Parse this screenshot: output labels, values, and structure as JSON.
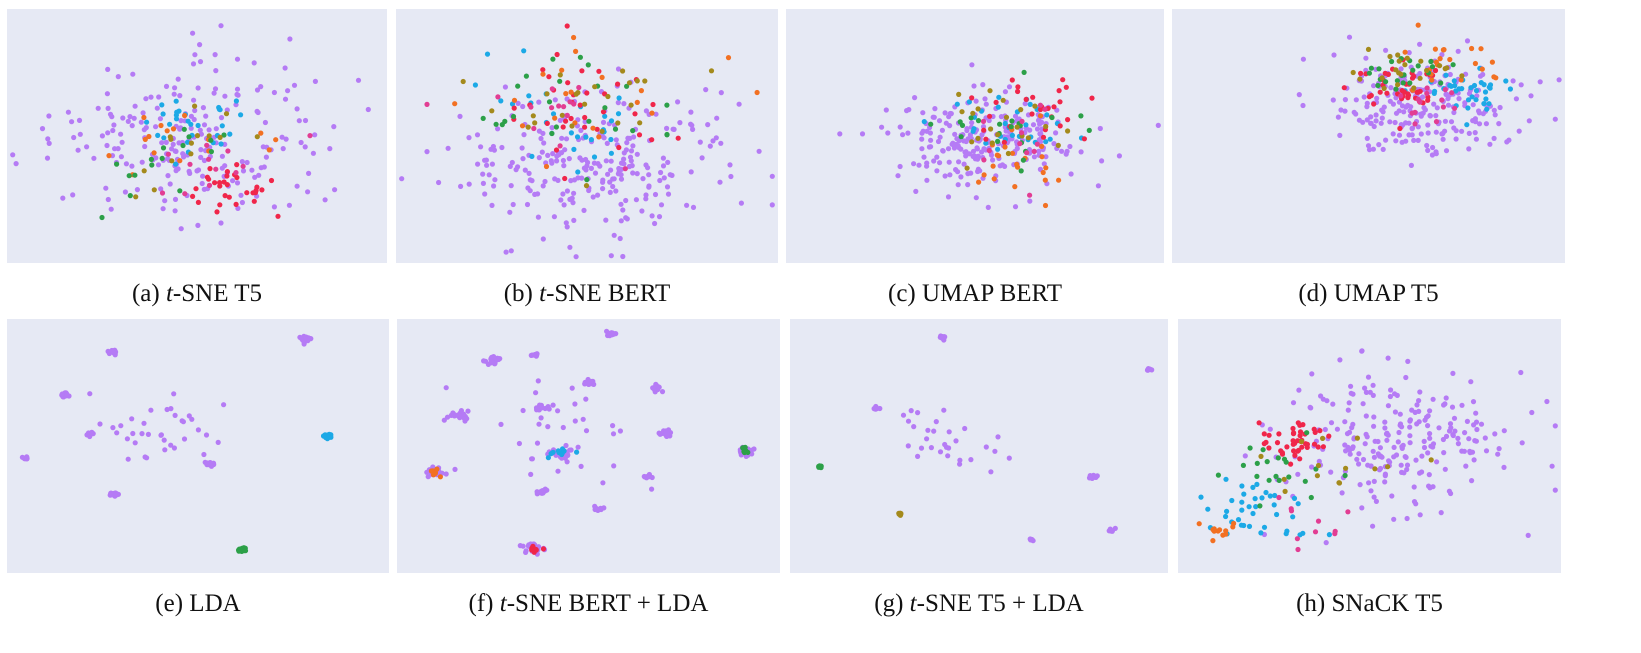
{
  "colors": {
    "plot_background": "#e6e9f4",
    "violet": "#b57bf5",
    "cyan": "#1ca9e6",
    "red": "#f0264a",
    "orange": "#f27022",
    "green": "#2ca048",
    "olive": "#a48a1c",
    "pink": "#e23d93"
  },
  "chart_data": [
    {
      "type": "scatter",
      "title": "",
      "caption": {
        "label": "(a)",
        "method_italic": "t",
        "method_rest": "-SNE T5"
      },
      "xlabel": "",
      "ylabel": "",
      "grid": false,
      "legend": "none",
      "layout_style": "diffuse-blob",
      "clusters": [
        {
          "color": "violet",
          "x": 0.48,
          "y": 0.52,
          "spread": 0.33,
          "n": 220
        },
        {
          "color": "cyan",
          "x": 0.48,
          "y": 0.45,
          "spread": 0.12,
          "n": 30
        },
        {
          "color": "red",
          "x": 0.6,
          "y": 0.7,
          "spread": 0.12,
          "n": 30
        },
        {
          "color": "orange",
          "x": 0.48,
          "y": 0.55,
          "spread": 0.18,
          "n": 16
        },
        {
          "color": "green",
          "x": 0.44,
          "y": 0.6,
          "spread": 0.18,
          "n": 16
        },
        {
          "color": "olive",
          "x": 0.46,
          "y": 0.58,
          "spread": 0.18,
          "n": 14
        },
        {
          "color": "pink",
          "x": 0.55,
          "y": 0.62,
          "spread": 0.15,
          "n": 12
        }
      ]
    },
    {
      "type": "scatter",
      "title": "",
      "caption": {
        "label": "(b)",
        "method_italic": "t",
        "method_rest": "-SNE BERT"
      },
      "xlabel": "",
      "ylabel": "",
      "grid": false,
      "legend": "none",
      "layout_style": "wide-cloud",
      "clusters": [
        {
          "color": "violet",
          "x": 0.52,
          "y": 0.62,
          "spread": 0.32,
          "n": 260
        },
        {
          "color": "cyan",
          "x": 0.48,
          "y": 0.42,
          "spread": 0.26,
          "n": 28
        },
        {
          "color": "red",
          "x": 0.5,
          "y": 0.38,
          "spread": 0.26,
          "n": 34
        },
        {
          "color": "orange",
          "x": 0.55,
          "y": 0.4,
          "spread": 0.26,
          "n": 20
        },
        {
          "color": "green",
          "x": 0.45,
          "y": 0.4,
          "spread": 0.26,
          "n": 24
        },
        {
          "color": "olive",
          "x": 0.5,
          "y": 0.35,
          "spread": 0.26,
          "n": 24
        },
        {
          "color": "pink",
          "x": 0.48,
          "y": 0.4,
          "spread": 0.26,
          "n": 14
        }
      ]
    },
    {
      "type": "scatter",
      "title": "",
      "caption": {
        "label": "(c)",
        "method_italic": "",
        "method_rest": "UMAP BERT"
      },
      "xlabel": "",
      "ylabel": "",
      "grid": false,
      "legend": "none",
      "layout_style": "compact-blob",
      "clusters": [
        {
          "color": "violet",
          "x": 0.52,
          "y": 0.52,
          "spread": 0.22,
          "n": 240
        },
        {
          "color": "cyan",
          "x": 0.6,
          "y": 0.45,
          "spread": 0.14,
          "n": 30
        },
        {
          "color": "red",
          "x": 0.64,
          "y": 0.42,
          "spread": 0.14,
          "n": 28
        },
        {
          "color": "orange",
          "x": 0.62,
          "y": 0.6,
          "spread": 0.14,
          "n": 22
        },
        {
          "color": "green",
          "x": 0.6,
          "y": 0.5,
          "spread": 0.14,
          "n": 22
        },
        {
          "color": "olive",
          "x": 0.56,
          "y": 0.45,
          "spread": 0.16,
          "n": 22
        },
        {
          "color": "pink",
          "x": 0.62,
          "y": 0.55,
          "spread": 0.14,
          "n": 12
        }
      ]
    },
    {
      "type": "scatter",
      "title": "",
      "caption": {
        "label": "(d)",
        "method_italic": "",
        "method_rest": "UMAP T5"
      },
      "xlabel": "",
      "ylabel": "",
      "grid": false,
      "legend": "none",
      "layout_style": "dense-upper",
      "clusters": [
        {
          "color": "violet",
          "x": 0.62,
          "y": 0.38,
          "spread": 0.22,
          "n": 230
        },
        {
          "color": "cyan",
          "x": 0.75,
          "y": 0.32,
          "spread": 0.1,
          "n": 36
        },
        {
          "color": "red",
          "x": 0.6,
          "y": 0.3,
          "spread": 0.1,
          "n": 40
        },
        {
          "color": "orange",
          "x": 0.7,
          "y": 0.22,
          "spread": 0.12,
          "n": 24
        },
        {
          "color": "green",
          "x": 0.62,
          "y": 0.25,
          "spread": 0.12,
          "n": 22
        },
        {
          "color": "olive",
          "x": 0.58,
          "y": 0.22,
          "spread": 0.12,
          "n": 22
        },
        {
          "color": "pink",
          "x": 0.62,
          "y": 0.35,
          "spread": 0.1,
          "n": 14
        }
      ]
    },
    {
      "type": "scatter",
      "title": "",
      "caption": {
        "label": "(e)",
        "method_italic": "",
        "method_rest": "LDA"
      },
      "xlabel": "",
      "ylabel": "",
      "grid": false,
      "legend": "none",
      "layout_style": "tight-clumps",
      "clusters": [
        {
          "color": "violet",
          "x": 0.28,
          "y": 0.13,
          "spread": 0.01,
          "n": 20
        },
        {
          "color": "violet",
          "x": 0.78,
          "y": 0.08,
          "spread": 0.012,
          "n": 30
        },
        {
          "color": "violet",
          "x": 0.15,
          "y": 0.3,
          "spread": 0.012,
          "n": 16
        },
        {
          "color": "violet",
          "x": 0.22,
          "y": 0.45,
          "spread": 0.01,
          "n": 10
        },
        {
          "color": "cyan",
          "x": 0.84,
          "y": 0.46,
          "spread": 0.01,
          "n": 20
        },
        {
          "color": "violet",
          "x": 0.05,
          "y": 0.55,
          "spread": 0.008,
          "n": 8
        },
        {
          "color": "violet",
          "x": 0.53,
          "y": 0.57,
          "spread": 0.01,
          "n": 14
        },
        {
          "color": "violet",
          "x": 0.28,
          "y": 0.69,
          "spread": 0.01,
          "n": 14
        },
        {
          "color": "green",
          "x": 0.61,
          "y": 0.91,
          "spread": 0.01,
          "n": 12
        },
        {
          "color": "violet",
          "x": 0.4,
          "y": 0.45,
          "spread": 0.16,
          "n": 36
        }
      ]
    },
    {
      "type": "scatter",
      "title": "",
      "caption": {
        "label": "(f)",
        "method_italic": "t",
        "method_rest": "-SNE BERT + LDA"
      },
      "xlabel": "",
      "ylabel": "",
      "grid": false,
      "legend": "none",
      "layout_style": "many-clusters",
      "clusters": [
        {
          "color": "violet",
          "x": 0.25,
          "y": 0.16,
          "spread": 0.02,
          "n": 24
        },
        {
          "color": "violet",
          "x": 0.56,
          "y": 0.06,
          "spread": 0.012,
          "n": 14
        },
        {
          "color": "violet",
          "x": 0.17,
          "y": 0.38,
          "spread": 0.024,
          "n": 24
        },
        {
          "color": "violet",
          "x": 0.1,
          "y": 0.6,
          "spread": 0.024,
          "n": 26
        },
        {
          "color": "violet",
          "x": 0.43,
          "y": 0.53,
          "spread": 0.03,
          "n": 30
        },
        {
          "color": "violet",
          "x": 0.91,
          "y": 0.52,
          "spread": 0.022,
          "n": 26
        },
        {
          "color": "violet",
          "x": 0.36,
          "y": 0.9,
          "spread": 0.022,
          "n": 26
        },
        {
          "color": "violet",
          "x": 0.68,
          "y": 0.27,
          "spread": 0.016,
          "n": 16
        },
        {
          "color": "violet",
          "x": 0.7,
          "y": 0.45,
          "spread": 0.016,
          "n": 16
        },
        {
          "color": "violet",
          "x": 0.5,
          "y": 0.25,
          "spread": 0.014,
          "n": 12
        },
        {
          "color": "violet",
          "x": 0.38,
          "y": 0.35,
          "spread": 0.014,
          "n": 12
        },
        {
          "color": "violet",
          "x": 0.38,
          "y": 0.68,
          "spread": 0.014,
          "n": 12
        },
        {
          "color": "violet",
          "x": 0.65,
          "y": 0.62,
          "spread": 0.012,
          "n": 10
        },
        {
          "color": "violet",
          "x": 0.53,
          "y": 0.75,
          "spread": 0.012,
          "n": 10
        },
        {
          "color": "violet",
          "x": 0.36,
          "y": 0.14,
          "spread": 0.01,
          "n": 8
        },
        {
          "color": "cyan",
          "x": 0.43,
          "y": 0.53,
          "spread": 0.03,
          "n": 10
        },
        {
          "color": "red",
          "x": 0.36,
          "y": 0.9,
          "spread": 0.022,
          "n": 8
        },
        {
          "color": "green",
          "x": 0.91,
          "y": 0.52,
          "spread": 0.022,
          "n": 8
        },
        {
          "color": "orange",
          "x": 0.1,
          "y": 0.6,
          "spread": 0.024,
          "n": 8
        },
        {
          "color": "violet",
          "x": 0.45,
          "y": 0.45,
          "spread": 0.22,
          "n": 34
        }
      ]
    },
    {
      "type": "scatter",
      "title": "",
      "caption": {
        "label": "(g)",
        "method_italic": "t",
        "method_rest": "-SNE T5 + LDA"
      },
      "xlabel": "",
      "ylabel": "",
      "grid": false,
      "legend": "none",
      "layout_style": "sparse",
      "clusters": [
        {
          "color": "violet",
          "x": 0.4,
          "y": 0.07,
          "spread": 0.01,
          "n": 10
        },
        {
          "color": "violet",
          "x": 0.23,
          "y": 0.35,
          "spread": 0.008,
          "n": 8
        },
        {
          "color": "violet",
          "x": 0.95,
          "y": 0.2,
          "spread": 0.006,
          "n": 6
        },
        {
          "color": "violet",
          "x": 0.8,
          "y": 0.62,
          "spread": 0.012,
          "n": 12
        },
        {
          "color": "green",
          "x": 0.08,
          "y": 0.58,
          "spread": 0.006,
          "n": 6
        },
        {
          "color": "olive",
          "x": 0.29,
          "y": 0.77,
          "spread": 0.008,
          "n": 8
        },
        {
          "color": "violet",
          "x": 0.85,
          "y": 0.83,
          "spread": 0.008,
          "n": 6
        },
        {
          "color": "violet",
          "x": 0.64,
          "y": 0.87,
          "spread": 0.006,
          "n": 6
        },
        {
          "color": "violet",
          "x": 0.45,
          "y": 0.5,
          "spread": 0.14,
          "n": 30
        }
      ]
    },
    {
      "type": "scatter",
      "title": "",
      "caption": {
        "label": "(h)",
        "method_italic": "",
        "method_rest": "SNaCK T5"
      },
      "xlabel": "",
      "ylabel": "",
      "grid": false,
      "legend": "none",
      "layout_style": "diagonal-cloud",
      "clusters": [
        {
          "color": "violet",
          "x": 0.6,
          "y": 0.45,
          "spread": 0.3,
          "n": 240
        },
        {
          "color": "red",
          "x": 0.3,
          "y": 0.48,
          "spread": 0.09,
          "n": 44
        },
        {
          "color": "cyan",
          "x": 0.22,
          "y": 0.75,
          "spread": 0.12,
          "n": 40
        },
        {
          "color": "green",
          "x": 0.25,
          "y": 0.6,
          "spread": 0.14,
          "n": 20
        },
        {
          "color": "orange",
          "x": 0.1,
          "y": 0.82,
          "spread": 0.05,
          "n": 12
        },
        {
          "color": "olive",
          "x": 0.4,
          "y": 0.55,
          "spread": 0.16,
          "n": 14
        },
        {
          "color": "pink",
          "x": 0.35,
          "y": 0.8,
          "spread": 0.1,
          "n": 10
        }
      ]
    }
  ]
}
